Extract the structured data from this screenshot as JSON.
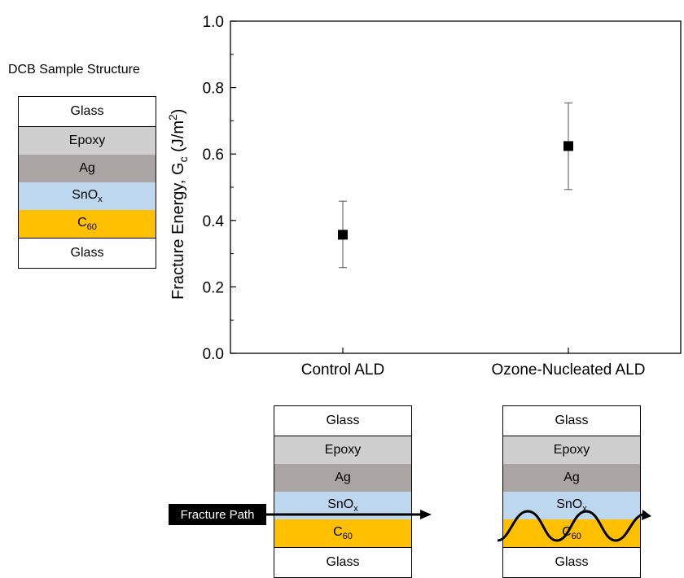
{
  "chart_data": {
    "type": "scatter",
    "categories": [
      "Control ALD",
      "Ozone-Nucleated ALD"
    ],
    "values": [
      0.357,
      0.624
    ],
    "error_upper": [
      0.458,
      0.754
    ],
    "error_lower": [
      0.258,
      0.493
    ],
    "ylabel_main": "Fracture Energy, G",
    "ylabel_sub": "c",
    "ylabel_unit": " (J/m",
    "ylabel_sup": "2",
    "ylabel_close": ")",
    "ylim": [
      0.0,
      1.0
    ],
    "yticks": [
      "0.0",
      "0.2",
      "0.4",
      "0.6",
      "0.8",
      "1.0"
    ],
    "marker": "square",
    "color": "#000000"
  },
  "structure": {
    "title": "DCB Sample Structure",
    "layers": [
      {
        "label": "Glass",
        "sub": "",
        "color": "#ffffff"
      },
      {
        "label": "Epoxy",
        "sub": "",
        "color": "#cfcfcf"
      },
      {
        "label": "Ag",
        "sub": "",
        "color": "#aaa5a3"
      },
      {
        "label": "SnO",
        "sub": "x",
        "color": "#bdd7ee"
      },
      {
        "label": "C",
        "sub": "60",
        "color": "#ffc000"
      },
      {
        "label": "Glass",
        "sub": "",
        "color": "#ffffff"
      }
    ]
  },
  "fracture_path_label": "Fracture Path"
}
